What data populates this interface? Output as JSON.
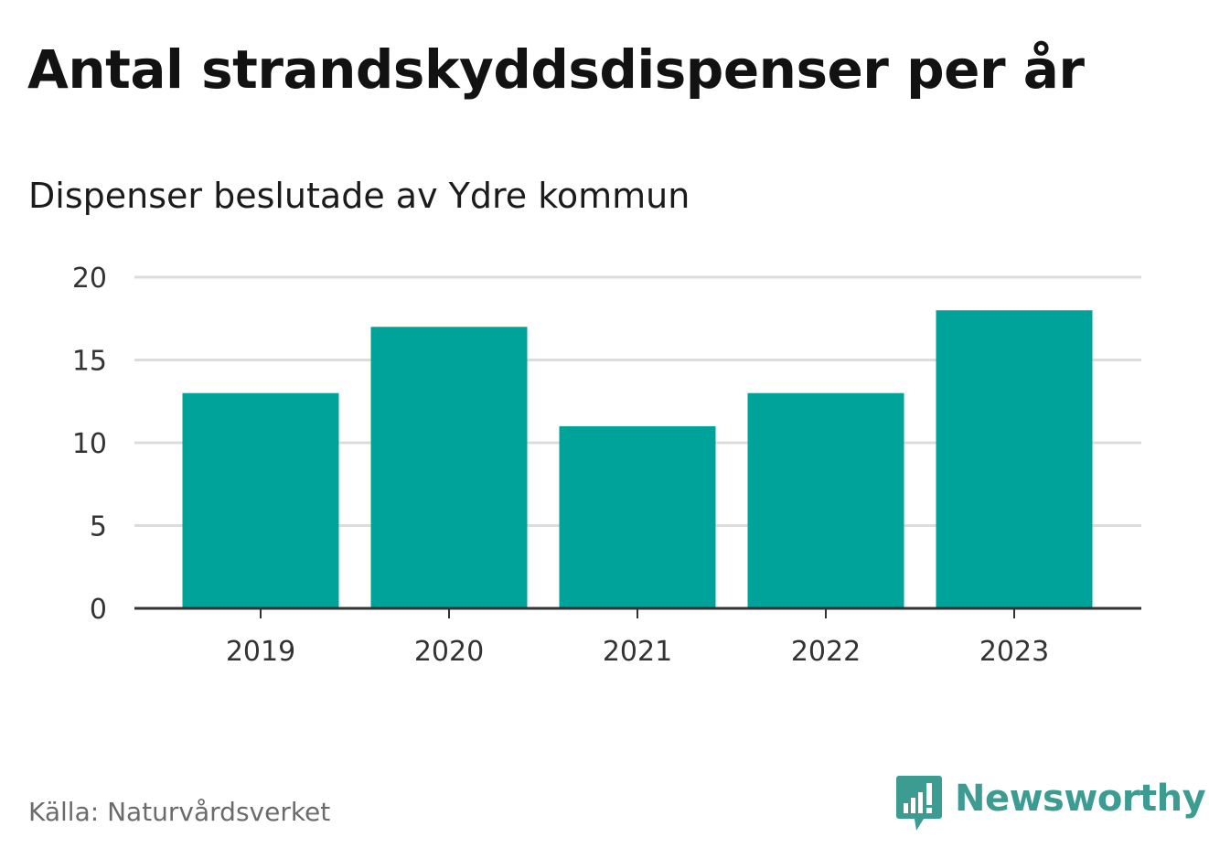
{
  "chart_data": {
    "type": "bar",
    "title": "Antal strandskyddsdispenser per år",
    "subtitle": "Dispenser beslutade av Ydre kommun",
    "categories": [
      "2019",
      "2020",
      "2021",
      "2022",
      "2023"
    ],
    "values": [
      13,
      17,
      11,
      13,
      18
    ],
    "yticks": [
      "0",
      "5",
      "10",
      "15",
      "20"
    ],
    "ylim": [
      0,
      20
    ],
    "xlabel": "",
    "ylabel": "",
    "grid": true,
    "bar_color": "#00a39a",
    "grid_color": "#dcdcdc",
    "axis_color": "#333333"
  },
  "source": "Källa: Naturvårdsverket",
  "brand": {
    "name": "Newsworthy",
    "icon": "newsworthy-logo-icon",
    "color": "#3d9c92"
  }
}
